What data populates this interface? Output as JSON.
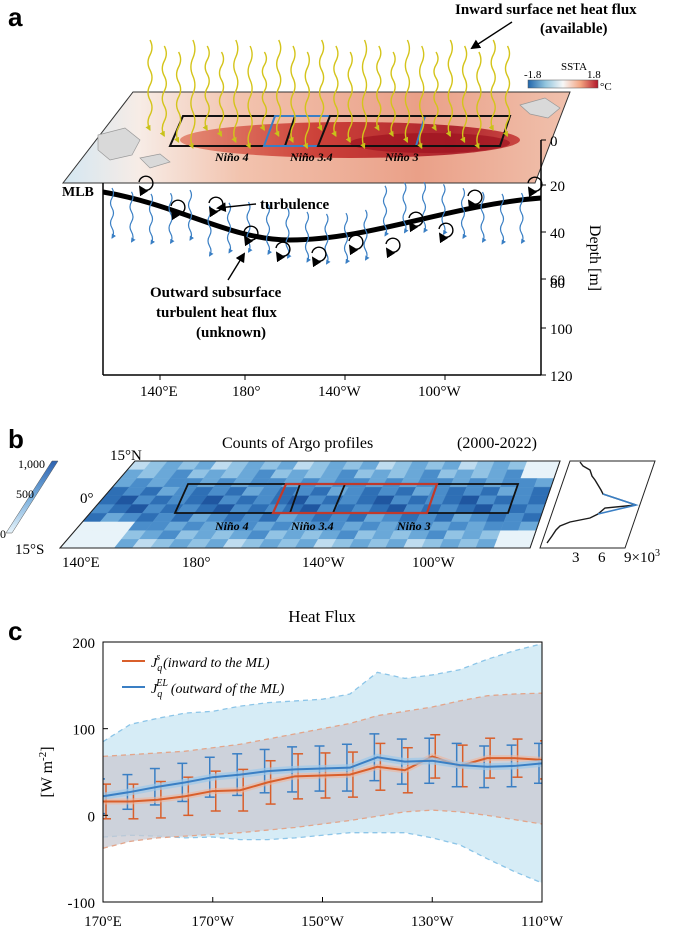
{
  "panel_a": {
    "letter": "a",
    "heat_flux_label_line1": "Inward surface net heat flux",
    "heat_flux_label_line2": "(available)",
    "colorbar": {
      "min_label": "-1.8",
      "title": "SSTA",
      "max_label": "1.8",
      "unit": "°C",
      "colors": [
        "#2166ac",
        "#92c5de",
        "#f7f7f7",
        "#f4a582",
        "#b2182b"
      ]
    },
    "region_labels": [
      "Niño 4",
      "Niño 3.4",
      "Niño 3"
    ],
    "mlb_label": "MLB",
    "turbulence_label": "turbulence",
    "outward_label_line1": "Outward subsurface",
    "outward_label_line2": "turbulent heat flux",
    "outward_label_line3": "(unknown)",
    "depth_axis": {
      "title": "Depth [m]",
      "ticks": [
        "0",
        "20",
        "40",
        "60",
        "80",
        "100",
        "120"
      ]
    },
    "lon_ticks": [
      "140°E",
      "180°",
      "140°W",
      "100°W"
    ]
  },
  "panel_b": {
    "letter": "b",
    "title": "Counts of Argo profiles",
    "period": "(2000-2022)",
    "colorbar_ticks": [
      "1,000",
      "500",
      "0"
    ],
    "lat_ticks": [
      "15°N",
      "0°",
      "15°S"
    ],
    "lon_ticks": [
      "140°E",
      "180°",
      "140°W",
      "100°W"
    ],
    "region_labels": [
      "Niño 4",
      "Niño 3.4",
      "Niño 3"
    ],
    "side_ticks": [
      "3",
      "6",
      "9×10"
    ],
    "side_tick_exp": "3"
  },
  "panel_c": {
    "letter": "c",
    "chart_data": {
      "type": "line",
      "title": "Heat Flux",
      "ylabel": "[W m",
      "ylabel_exp": "-2",
      "ylabel_end": "]",
      "ylim": [
        -100,
        200
      ],
      "yticks": [
        "200",
        "100",
        "0",
        "-100"
      ],
      "ytick_values": [
        200,
        100,
        0,
        -100
      ],
      "xlim": [
        170,
        250
      ],
      "xtick_values": [
        170,
        190,
        210,
        230,
        250
      ],
      "xticks": [
        "170°E",
        "170°W",
        "150°W",
        "130°W",
        "110°W"
      ],
      "x": [
        170,
        175,
        180,
        185,
        190,
        195,
        200,
        205,
        210,
        215,
        220,
        225,
        230,
        235,
        240,
        245,
        250
      ],
      "legend_position": "top-left",
      "series": [
        {
          "name": "J_q^s",
          "legend_symbol": "J",
          "legend_sub": "q",
          "legend_sup": "s",
          "legend_text": "(inward to the ML)",
          "color": "#d95f2b",
          "values": [
            16,
            16,
            18,
            22,
            28,
            29,
            38,
            45,
            46,
            47,
            56,
            52,
            68,
            57,
            66,
            66,
            64
          ],
          "error": [
            20,
            20,
            21,
            22,
            23,
            24,
            25,
            26,
            26,
            26,
            27,
            26,
            25,
            24,
            23,
            22,
            22
          ],
          "band_upper": [
            68,
            70,
            72,
            74,
            78,
            82,
            88,
            94,
            100,
            106,
            115,
            120,
            125,
            132,
            138,
            140,
            141
          ],
          "band_lower": [
            -38,
            -30,
            -26,
            -24,
            -22,
            -20,
            -17,
            -14,
            -10,
            -6,
            -1,
            4,
            6,
            4,
            0,
            -5,
            -10
          ]
        },
        {
          "name": "J_q^EL",
          "legend_symbol": "J",
          "legend_sub": "q",
          "legend_sup": "EL",
          "legend_text": "(outward of the ML)",
          "color": "#3a7fc4",
          "values": [
            22,
            27,
            33,
            38,
            44,
            47,
            51,
            53,
            54,
            55,
            67,
            62,
            63,
            58,
            56,
            57,
            60
          ],
          "error": [
            20,
            20,
            21,
            22,
            23,
            24,
            25,
            26,
            26,
            27,
            27,
            26,
            26,
            25,
            24,
            24,
            23
          ],
          "band_upper": [
            85,
            105,
            112,
            118,
            120,
            126,
            130,
            132,
            134,
            140,
            165,
            158,
            162,
            168,
            180,
            190,
            198
          ],
          "band_lower": [
            -25,
            -23,
            -24,
            -26,
            -25,
            -28,
            -28,
            -26,
            -23,
            -20,
            -20,
            -20,
            -26,
            -34,
            -50,
            -65,
            -78
          ]
        }
      ]
    }
  }
}
